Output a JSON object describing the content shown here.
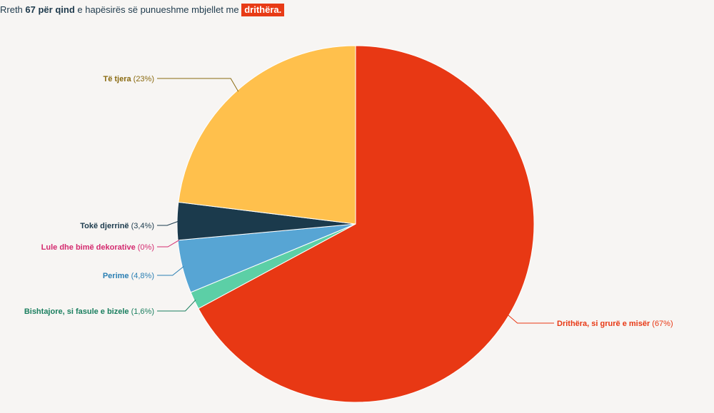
{
  "header": {
    "prefix": "Rreth",
    "bold": "67 për qind",
    "middle": "e hapësirës së punueshme mbjellet me",
    "highlight": "drithëra."
  },
  "chart_data": {
    "type": "pie",
    "title": "",
    "start_angle_deg": 0,
    "slices": [
      {
        "name": "Drithëra, si grurë e misër",
        "value": 67,
        "label_pct": "(67%)",
        "color": "#e83814",
        "label_color": "#e83814"
      },
      {
        "name": "Bishtajore, si fasule e bizele",
        "value": 1.6,
        "label_pct": "(1,6%)",
        "color": "#5ccfa6",
        "label_color": "#1b7f5f"
      },
      {
        "name": "Perime",
        "value": 4.8,
        "label_pct": "(4,8%)",
        "color": "#57a5d4",
        "label_color": "#2b7fb3"
      },
      {
        "name": "Lule dhe bimë dekorative",
        "value": 0,
        "label_pct": "(0%)",
        "color": "#d42a6f",
        "label_color": "#d42a6f"
      },
      {
        "name": "Tokë djerrinë",
        "value": 3.4,
        "label_pct": "(3,4%)",
        "color": "#1b3a4c",
        "label_color": "#1b3a4c"
      },
      {
        "name": "Të tjera",
        "value": 23,
        "label_pct": "(23%)",
        "color": "#ffc04c",
        "label_color": "#8a6a10"
      }
    ]
  }
}
